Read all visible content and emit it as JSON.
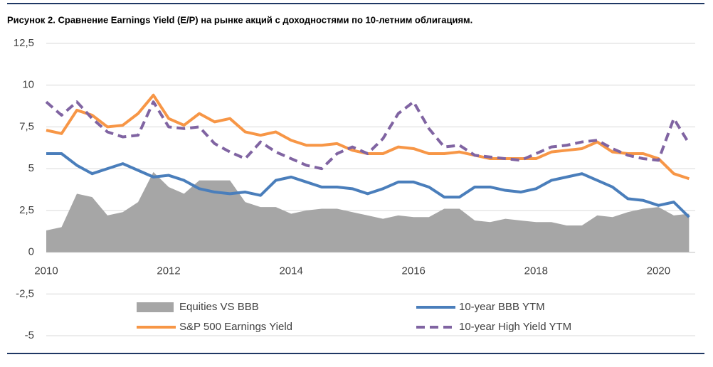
{
  "chart_data": {
    "type": "line",
    "title": "Рисунок 2. Сравнение Earnings Yield (E/P) на рынке акций с доходностями по 10-летним облигациям.",
    "x": [
      2010,
      2010.25,
      2010.5,
      2010.75,
      2011,
      2011.25,
      2011.5,
      2011.75,
      2012,
      2012.25,
      2012.5,
      2012.75,
      2013,
      2013.25,
      2013.5,
      2013.75,
      2014,
      2014.25,
      2014.5,
      2014.75,
      2015,
      2015.25,
      2015.5,
      2015.75,
      2016,
      2016.25,
      2016.5,
      2016.75,
      2017,
      2017.25,
      2017.5,
      2017.75,
      2018,
      2018.25,
      2018.5,
      2018.75,
      2019,
      2019.25,
      2019.5,
      2019.75,
      2020,
      2020.25,
      2020.5
    ],
    "series": [
      {
        "name": "Equities VS BBB",
        "color": "#a6a6a6",
        "style": "area",
        "values": [
          1.3,
          1.5,
          3.5,
          3.3,
          2.2,
          2.4,
          3.0,
          4.8,
          3.9,
          3.5,
          4.3,
          4.3,
          4.3,
          3.0,
          2.7,
          2.7,
          2.3,
          2.5,
          2.6,
          2.6,
          2.4,
          2.2,
          2.0,
          2.2,
          2.1,
          2.1,
          2.6,
          2.6,
          1.9,
          1.8,
          2.0,
          1.9,
          1.8,
          1.8,
          1.6,
          1.6,
          2.2,
          2.1,
          2.4,
          2.6,
          2.7,
          2.2,
          2.3
        ]
      },
      {
        "name": "10-year BBB YTM",
        "color": "#4a7ebb",
        "style": "solid",
        "values": [
          5.9,
          5.9,
          5.2,
          4.7,
          5.0,
          5.3,
          4.9,
          4.5,
          4.6,
          4.3,
          3.8,
          3.6,
          3.5,
          3.6,
          3.4,
          4.3,
          4.5,
          4.2,
          3.9,
          3.9,
          3.8,
          3.5,
          3.8,
          4.2,
          4.2,
          3.9,
          3.3,
          3.3,
          3.9,
          3.9,
          3.7,
          3.6,
          3.8,
          4.3,
          4.5,
          4.7,
          4.3,
          3.9,
          3.2,
          3.1,
          2.8,
          3.0,
          2.1
        ]
      },
      {
        "name": "S&P 500 Earnings Yield",
        "color": "#f79646",
        "style": "solid",
        "values": [
          7.3,
          7.1,
          8.5,
          8.2,
          7.5,
          7.6,
          8.3,
          9.4,
          8.0,
          7.6,
          8.3,
          7.8,
          8.0,
          7.2,
          7.0,
          7.2,
          6.7,
          6.4,
          6.4,
          6.5,
          6.1,
          5.9,
          5.9,
          6.3,
          6.2,
          5.9,
          5.9,
          6.0,
          5.8,
          5.6,
          5.6,
          5.6,
          5.6,
          6.0,
          6.1,
          6.2,
          6.6,
          6.0,
          5.9,
          5.9,
          5.6,
          4.7,
          4.4
        ]
      },
      {
        "name": "10-year High Yield YTM",
        "color": "#8064a2",
        "style": "dashed",
        "values": [
          9.0,
          8.2,
          9.0,
          8.0,
          7.2,
          6.9,
          7.0,
          9.0,
          7.5,
          7.4,
          7.5,
          6.5,
          6.0,
          5.6,
          6.6,
          6.0,
          5.6,
          5.2,
          5.0,
          5.9,
          6.3,
          5.9,
          6.8,
          8.3,
          9.0,
          7.4,
          6.3,
          6.4,
          5.8,
          5.7,
          5.6,
          5.5,
          5.9,
          6.3,
          6.4,
          6.6,
          6.7,
          6.2,
          5.8,
          5.6,
          5.5,
          8.0,
          6.5
        ]
      }
    ],
    "xlim": [
      2010,
      2020.6
    ],
    "xticks": [
      2010,
      2012,
      2014,
      2016,
      2018,
      2020
    ],
    "ylim": [
      -5,
      12.5
    ],
    "yticks": [
      {
        "value": 12.5,
        "label": "12,5"
      },
      10,
      {
        "value": 7.5,
        "label": "7,5"
      },
      5,
      {
        "value": 2.5,
        "label": "2,5"
      },
      0,
      {
        "value": -2.5,
        "label": "-2,5"
      },
      -5
    ],
    "grid": true,
    "legend": "bottom"
  }
}
